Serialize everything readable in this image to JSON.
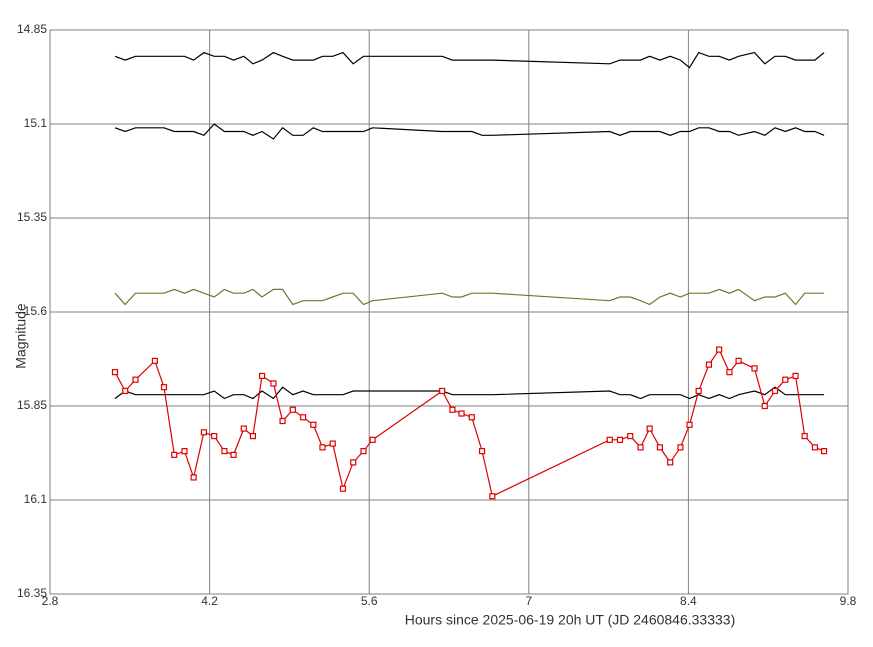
{
  "chart_data": {
    "type": "line",
    "xlabel": "Hours since 2025-06-19 20h UT (JD 2460846.33333)",
    "ylabel": "Magnitude",
    "xlim": [
      2.8,
      9.8
    ],
    "xticks": [
      2.8,
      4.2,
      5.6,
      7,
      8.4,
      9.8
    ],
    "ylim": [
      16.35,
      14.85
    ],
    "yticks": [
      14.85,
      15.1,
      15.35,
      15.6,
      15.85,
      16.1,
      16.35
    ],
    "grid": true,
    "x": [
      3.37,
      3.46,
      3.55,
      3.72,
      3.8,
      3.89,
      3.98,
      4.06,
      4.15,
      4.24,
      4.33,
      4.41,
      4.5,
      4.58,
      4.66,
      4.76,
      4.84,
      4.93,
      5.02,
      5.11,
      5.19,
      5.28,
      5.37,
      5.46,
      5.55,
      5.63,
      6.24,
      6.33,
      6.41,
      6.5,
      6.59,
      6.68,
      7.71,
      7.8,
      7.89,
      7.98,
      8.06,
      8.15,
      8.24,
      8.33,
      8.41,
      8.49,
      8.58,
      8.67,
      8.76,
      8.84,
      8.98,
      9.07,
      9.16,
      9.25,
      9.34,
      9.42,
      9.51,
      9.59
    ],
    "series": [
      {
        "color": "#000000",
        "values": [
          14.92,
          14.93,
          14.92,
          14.92,
          14.92,
          14.92,
          14.92,
          14.93,
          14.91,
          14.92,
          14.92,
          14.93,
          14.92,
          14.94,
          14.93,
          14.91,
          14.92,
          14.93,
          14.93,
          14.93,
          14.92,
          14.92,
          14.91,
          14.94,
          14.92,
          14.92,
          14.92,
          14.93,
          14.93,
          14.93,
          14.93,
          14.93,
          14.94,
          14.93,
          14.93,
          14.93,
          14.92,
          14.93,
          14.92,
          14.93,
          14.95,
          14.91,
          14.92,
          14.92,
          14.93,
          14.92,
          14.91,
          14.94,
          14.92,
          14.92,
          14.93,
          14.93,
          14.93,
          14.91
        ]
      },
      {
        "color": "#000000",
        "values": [
          15.11,
          15.12,
          15.11,
          15.11,
          15.11,
          15.12,
          15.12,
          15.12,
          15.13,
          15.1,
          15.12,
          15.12,
          15.12,
          15.13,
          15.12,
          15.14,
          15.11,
          15.13,
          15.13,
          15.11,
          15.12,
          15.12,
          15.12,
          15.12,
          15.12,
          15.11,
          15.12,
          15.12,
          15.12,
          15.12,
          15.13,
          15.13,
          15.12,
          15.13,
          15.12,
          15.12,
          15.12,
          15.12,
          15.13,
          15.12,
          15.12,
          15.11,
          15.11,
          15.12,
          15.12,
          15.13,
          15.12,
          15.13,
          15.11,
          15.12,
          15.11,
          15.12,
          15.12,
          15.13
        ]
      },
      {
        "color": "#6b7a2a",
        "values": [
          15.55,
          15.58,
          15.55,
          15.55,
          15.55,
          15.54,
          15.55,
          15.54,
          15.55,
          15.56,
          15.54,
          15.55,
          15.55,
          15.54,
          15.56,
          15.54,
          15.54,
          15.58,
          15.57,
          15.57,
          15.57,
          15.56,
          15.55,
          15.55,
          15.58,
          15.57,
          15.55,
          15.56,
          15.56,
          15.55,
          15.55,
          15.55,
          15.57,
          15.56,
          15.56,
          15.57,
          15.58,
          15.56,
          15.55,
          15.56,
          15.55,
          15.55,
          15.55,
          15.54,
          15.55,
          15.54,
          15.57,
          15.56,
          15.56,
          15.55,
          15.58,
          15.55,
          15.55,
          15.55
        ]
      },
      {
        "color": "#000000",
        "values": [
          15.83,
          15.81,
          15.82,
          15.82,
          15.82,
          15.82,
          15.82,
          15.82,
          15.82,
          15.81,
          15.83,
          15.82,
          15.82,
          15.83,
          15.81,
          15.83,
          15.8,
          15.82,
          15.81,
          15.82,
          15.82,
          15.82,
          15.82,
          15.81,
          15.81,
          15.81,
          15.81,
          15.82,
          15.82,
          15.82,
          15.82,
          15.82,
          15.81,
          15.82,
          15.82,
          15.83,
          15.82,
          15.82,
          15.82,
          15.82,
          15.83,
          15.82,
          15.83,
          15.82,
          15.83,
          15.82,
          15.81,
          15.82,
          15.8,
          15.82,
          15.82,
          15.82,
          15.82,
          15.82
        ]
      },
      {
        "color": "#e00000",
        "marker": "square",
        "values": [
          15.76,
          15.81,
          15.78,
          15.73,
          15.8,
          15.98,
          15.97,
          16.04,
          15.92,
          15.93,
          15.97,
          15.98,
          15.91,
          15.93,
          15.77,
          15.79,
          15.89,
          15.86,
          15.88,
          15.9,
          15.96,
          15.95,
          16.07,
          16.0,
          15.97,
          15.94,
          15.81,
          15.86,
          15.87,
          15.88,
          15.97,
          16.09,
          15.94,
          15.94,
          15.93,
          15.96,
          15.91,
          15.96,
          16.0,
          15.96,
          15.9,
          15.81,
          15.74,
          15.7,
          15.76,
          15.73,
          15.75,
          15.85,
          15.81,
          15.78,
          15.77,
          15.93,
          15.96,
          15.97
        ]
      }
    ]
  }
}
